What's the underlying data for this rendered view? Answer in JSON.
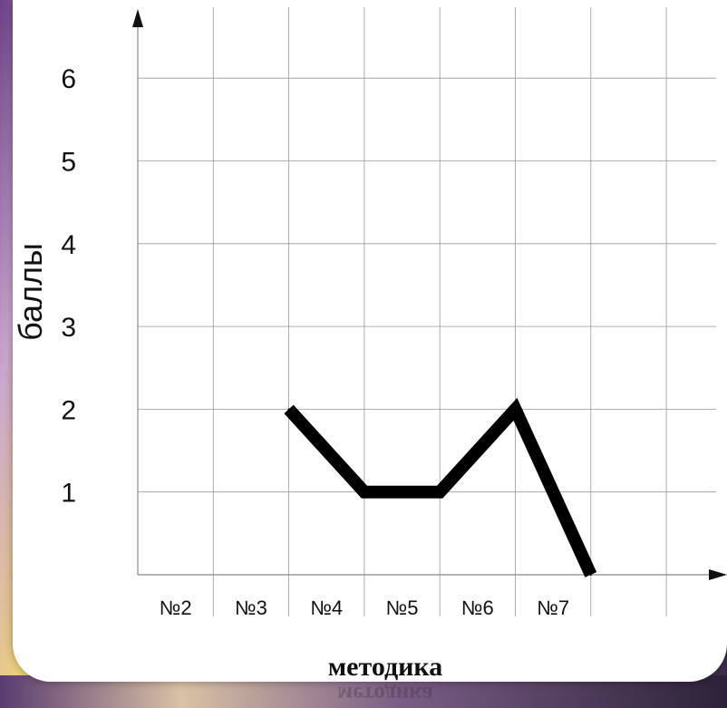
{
  "chart_data": {
    "type": "line",
    "categories": [
      "№2",
      "№3",
      "№4",
      "№5",
      "№6",
      "№7"
    ],
    "series": [
      {
        "values": [
          null,
          2,
          1,
          1,
          2,
          0
        ]
      }
    ],
    "x_values_note_free": true,
    "xlabel": "методика",
    "ylabel": "баллы",
    "yticks": [
      1,
      2,
      3,
      4,
      5,
      6
    ],
    "ylim": [
      0,
      6
    ],
    "grid": true,
    "line_color": "#000000",
    "background_color": "#ffffff"
  }
}
